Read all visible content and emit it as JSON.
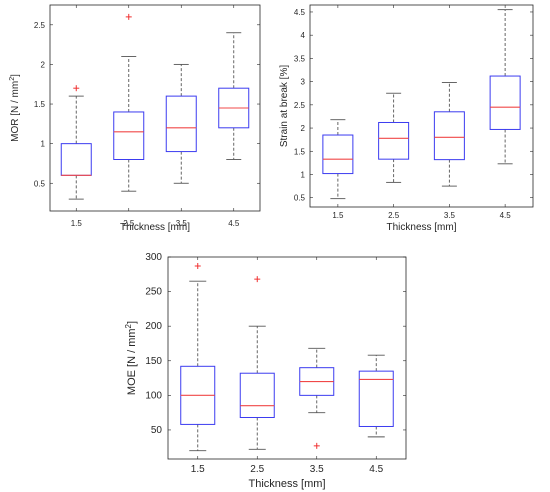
{
  "chart_data": [
    {
      "type": "box",
      "xlabel": "Thickness [mm]",
      "ylabel": "MOR [N / mm",
      "ylabel_sup": "2",
      "ylabel_end": "]",
      "categories": [
        "1.5",
        "2.5",
        "3.5",
        "4.5"
      ],
      "yticks": [
        "0.5",
        "1",
        "1.5",
        "2",
        "2.5"
      ],
      "ylim": [
        0.15,
        2.75
      ],
      "boxes": [
        {
          "min": 0.3,
          "q1": 0.6,
          "median": 0.6,
          "q3": 1.0,
          "max": 1.6,
          "outliers": [
            1.7
          ]
        },
        {
          "min": 0.4,
          "q1": 0.8,
          "median": 1.15,
          "q3": 1.4,
          "max": 2.1,
          "outliers": [
            2.6
          ]
        },
        {
          "min": 0.5,
          "q1": 0.9,
          "median": 1.2,
          "q3": 1.6,
          "max": 2.0,
          "outliers": []
        },
        {
          "min": 0.8,
          "q1": 1.2,
          "median": 1.45,
          "q3": 1.7,
          "max": 2.4,
          "outliers": []
        }
      ]
    },
    {
      "type": "box",
      "xlabel": "Thickness [mm]",
      "ylabel": "Strain at break [%]",
      "categories": [
        "1.5",
        "2.5",
        "3.5",
        "4.5"
      ],
      "yticks": [
        "0.5",
        "1",
        "1.5",
        "2",
        "2.5",
        "3",
        "3.5",
        "4",
        "4.5"
      ],
      "ylim": [
        0.3,
        4.65
      ],
      "boxes": [
        {
          "min": 0.48,
          "q1": 1.02,
          "median": 1.33,
          "q3": 1.85,
          "max": 2.18,
          "outliers": []
        },
        {
          "min": 0.83,
          "q1": 1.33,
          "median": 1.78,
          "q3": 2.12,
          "max": 2.75,
          "outliers": []
        },
        {
          "min": 0.75,
          "q1": 1.32,
          "median": 1.8,
          "q3": 2.35,
          "max": 2.98,
          "outliers": []
        },
        {
          "min": 1.23,
          "q1": 1.97,
          "median": 2.45,
          "q3": 3.12,
          "max": 4.55,
          "outliers": []
        }
      ]
    },
    {
      "type": "box",
      "xlabel": "Thickness [mm]",
      "ylabel": "MOE [N / mm",
      "ylabel_sup": "2",
      "ylabel_end": "]",
      "categories": [
        "1.5",
        "2.5",
        "3.5",
        "4.5"
      ],
      "yticks": [
        "50",
        "100",
        "150",
        "200",
        "250",
        "300"
      ],
      "ylim": [
        8,
        300
      ],
      "boxes": [
        {
          "min": 20,
          "q1": 58,
          "median": 100,
          "q3": 142,
          "max": 265,
          "outliers": [
            287
          ]
        },
        {
          "min": 22,
          "q1": 68,
          "median": 85,
          "q3": 132,
          "max": 200,
          "outliers": [
            268
          ]
        },
        {
          "min": 75,
          "q1": 100,
          "median": 120,
          "q3": 140,
          "max": 168,
          "outliers": [
            27
          ]
        },
        {
          "min": 40,
          "q1": 55,
          "median": 123,
          "q3": 135,
          "max": 158,
          "outliers": []
        }
      ]
    }
  ],
  "colors": {
    "box": "#3b3bf0",
    "median": "#f04848",
    "outlier": "#f03030",
    "whisker": "#555555"
  }
}
